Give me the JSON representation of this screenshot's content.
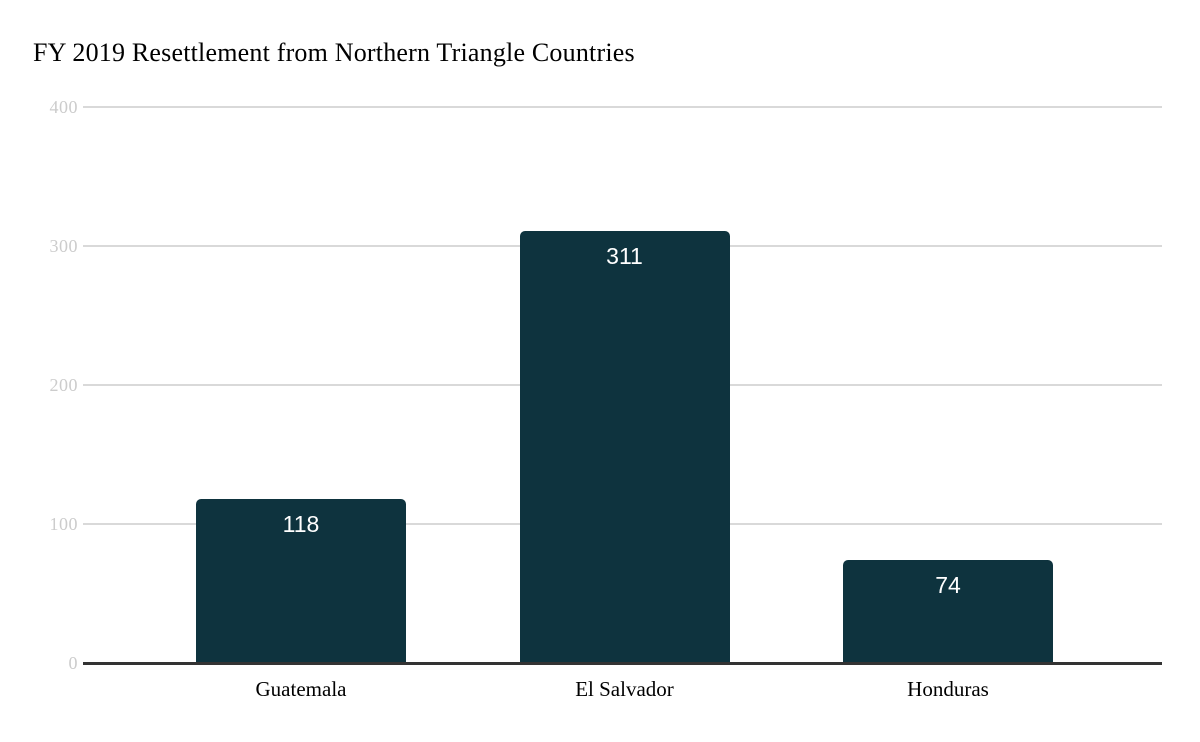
{
  "chart_data": {
    "type": "bar",
    "title": "FY 2019 Resettlement from Northern Triangle Countries",
    "categories": [
      "Guatemala",
      "El Salvador",
      "Honduras"
    ],
    "values": [
      118,
      311,
      74
    ],
    "value_labels": [
      "118",
      "311",
      "74"
    ],
    "xlabel": "",
    "ylabel": "",
    "ylim": [
      0,
      400
    ],
    "yticks": [
      0,
      100,
      200,
      300,
      400
    ],
    "grid": true,
    "legend_position": "none",
    "colors": {
      "bar": "#0e333e",
      "value_label": "#ffffff",
      "gridline": "#d9d9d9",
      "ytick_label": "#cccccc",
      "axis_line": "#333333",
      "title": "#000000",
      "category_label": "#000000",
      "background": "#ffffff"
    }
  }
}
